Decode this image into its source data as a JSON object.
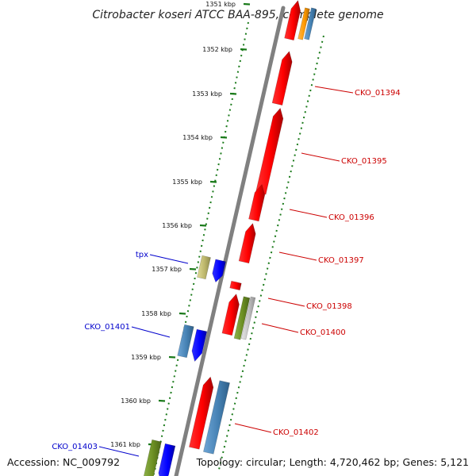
{
  "title": "Citrobacter koseri ATCC BAA-895, complete genome",
  "footer": {
    "accession": "Accession: NC_009792",
    "topology": "Topology: circular; Length: 4,720,462 bp; Genes: 5,121"
  },
  "colors": {
    "backbone": "#808080",
    "tick": "#1a7a1a",
    "forward_label": "#0000cc",
    "reverse_label": "#cc0000",
    "cds_red": "#ff0000",
    "cds_blue": "#0000ff",
    "cds_steel": "#4682b4",
    "cds_olive": "#6b8e23",
    "cds_khaki": "#bdb76b",
    "cds_orange": "#ff9900",
    "cds_grey": "#c0c0c0"
  },
  "ticks": [
    {
      "label": "1351 kbp"
    },
    {
      "label": "1352 kbp"
    },
    {
      "label": "1353 kbp"
    },
    {
      "label": "1354 kbp"
    },
    {
      "label": "1355 kbp"
    },
    {
      "label": "1356 kbp"
    },
    {
      "label": "1357 kbp"
    },
    {
      "label": "1358 kbp"
    },
    {
      "label": "1359 kbp"
    },
    {
      "label": "1360 kbp"
    },
    {
      "label": "1361 kbp"
    }
  ],
  "labels": [
    {
      "text": "tpx",
      "strand": "forward"
    },
    {
      "text": "CKO_01401",
      "strand": "forward"
    },
    {
      "text": "CKO_01403",
      "strand": "forward"
    },
    {
      "text": "CKO_01394",
      "strand": "reverse"
    },
    {
      "text": "CKO_01395",
      "strand": "reverse"
    },
    {
      "text": "CKO_01396",
      "strand": "reverse"
    },
    {
      "text": "CKO_01397",
      "strand": "reverse"
    },
    {
      "text": "CKO_01398",
      "strand": "reverse"
    },
    {
      "text": "CKO_01400",
      "strand": "reverse"
    },
    {
      "text": "CKO_01402",
      "strand": "reverse"
    }
  ]
}
